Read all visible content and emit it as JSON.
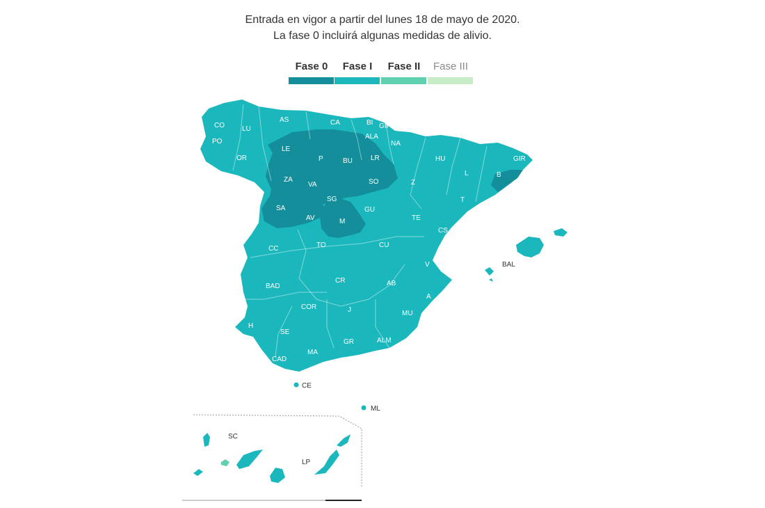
{
  "header": {
    "line1": "Entrada en vigor a partir del lunes 18 de mayo de 2020.",
    "line2": "La fase 0 incluirá algunas medidas de alivio."
  },
  "legend": [
    {
      "label": "Fase 0",
      "color": "#148e9a"
    },
    {
      "label": "Fase I",
      "color": "#1ab8bd"
    },
    {
      "label": "Fase II",
      "color": "#5fcfb0"
    },
    {
      "label": "Fase III",
      "color": "#c6ecc5"
    }
  ],
  "phase_colors": {
    "fase0": "#148e9a",
    "fase1": "#1ab8bd",
    "fase2": "#5fcfb0"
  },
  "provinces": {
    "CO": "CO",
    "LU": "LU",
    "AS": "AS",
    "CA": "CA",
    "BI": "BI",
    "GIP": "GIP",
    "PO": "PO",
    "OR": "OR",
    "LE": "LE",
    "P": "P",
    "BU": "BU",
    "ALA": "ALA",
    "NA": "NA",
    "LR": "LR",
    "HU": "HU",
    "GIR": "GIR",
    "B": "B",
    "ZA": "ZA",
    "VA": "VA",
    "SO": "SO",
    "Z": "Z",
    "L": "L",
    "T": "T",
    "SA": "SA",
    "SG": "SG",
    "GU": "GU",
    "AV": "AV",
    "M": "M",
    "TE": "TE",
    "CS": "CS",
    "CC": "CC",
    "TO": "TO",
    "CU": "CU",
    "V": "V",
    "BAL": "BAL",
    "BAD": "BAD",
    "CR": "CR",
    "AB": "AB",
    "A": "A",
    "COR": "COR",
    "J": "J",
    "MU": "MU",
    "H": "H",
    "SE": "SE",
    "GR": "GR",
    "ALM": "ALM",
    "MA": "MA",
    "CAD": "CAD",
    "CE": "CE",
    "ML": "ML",
    "SC": "SC",
    "LP": "LP"
  }
}
